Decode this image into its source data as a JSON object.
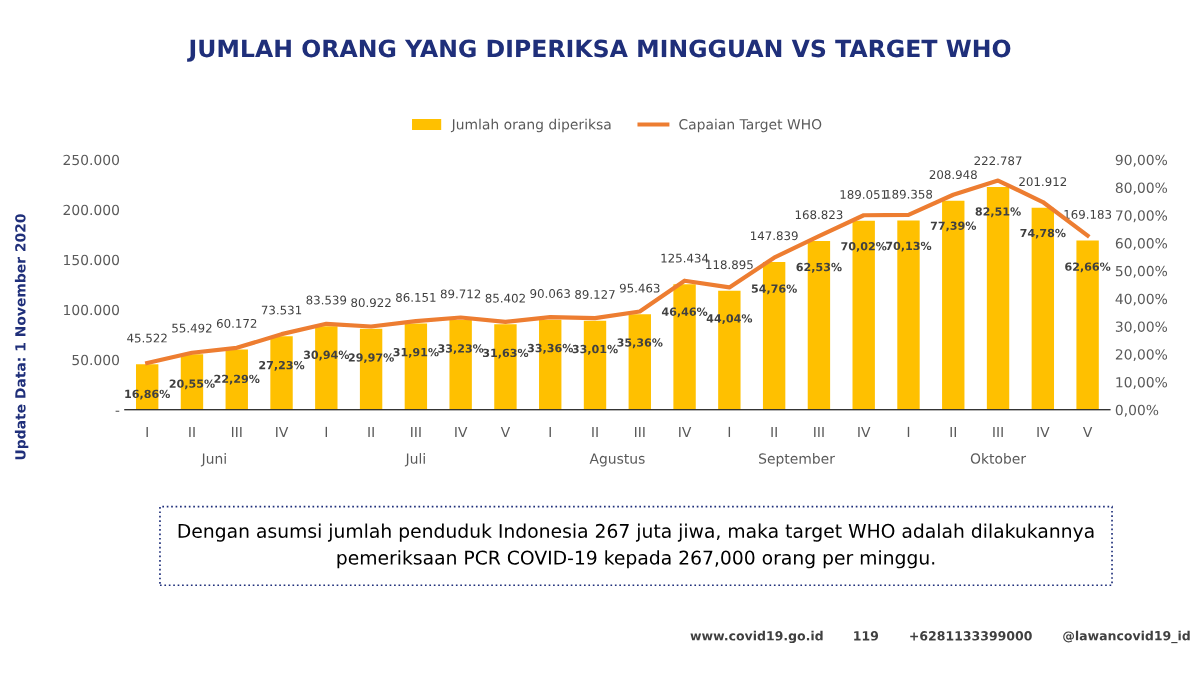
{
  "chart_data": {
    "type": "bar",
    "title": "JUMLAH ORANG YANG DIPERIKSA MINGGUAN VS TARGET WHO",
    "categories": [
      "I",
      "II",
      "III",
      "IV",
      "I",
      "II",
      "III",
      "IV",
      "V",
      "I",
      "II",
      "III",
      "IV",
      "I",
      "II",
      "III",
      "IV",
      "I",
      "II",
      "III",
      "IV",
      "V"
    ],
    "series": [
      {
        "name": "Jumlah orang diperiksa",
        "color": "#ffc000",
        "values": [
          45522,
          55492,
          60172,
          73531,
          83539,
          80922,
          86151,
          89712,
          85402,
          90063,
          89127,
          95463,
          125434,
          118895,
          147839,
          168823,
          189051,
          189358,
          208948,
          222787,
          201912,
          169183
        ],
        "value_labels": [
          "45.522",
          "55.492",
          "60.172",
          "73.531",
          "83.539",
          "80.922",
          "86.151",
          "89.712",
          "85.402",
          "90.063",
          "89.127",
          "95.463",
          "125.434",
          "118.895",
          "147.839",
          "168.823",
          "189.051",
          "189.358",
          "208.948",
          "222.787",
          "201.912",
          "169.183"
        ]
      },
      {
        "name": "Capaian Target WHO",
        "type": "line",
        "axis": "y2",
        "color": "#ed7d31",
        "values": [
          16.86,
          20.55,
          22.29,
          27.23,
          30.94,
          29.97,
          31.91,
          33.23,
          31.63,
          33.36,
          33.01,
          35.36,
          46.46,
          44.04,
          54.76,
          62.53,
          70.02,
          70.13,
          77.39,
          82.51,
          74.78,
          62.66
        ],
        "value_labels": [
          "16,86%",
          "20,55%",
          "22,29%",
          "27,23%",
          "30,94%",
          "29,97%",
          "31,91%",
          "33,23%",
          "31,63%",
          "33,36%",
          "33,01%",
          "35,36%",
          "46,46%",
          "44,04%",
          "54,76%",
          "62,53%",
          "70,02%",
          "70,13%",
          "77,39%",
          "82,51%",
          "74,78%",
          "62,66%"
        ]
      }
    ],
    "ylim": [
      0,
      250000
    ],
    "yticks": [
      {
        "value": 0,
        "label": "-"
      },
      {
        "value": 50000,
        "label": "50.000"
      },
      {
        "value": 100000,
        "label": "100.000"
      },
      {
        "value": 150000,
        "label": "150.000"
      },
      {
        "value": 200000,
        "label": "200.000"
      },
      {
        "value": 250000,
        "label": "250.000"
      }
    ],
    "y2lim": [
      0,
      90
    ],
    "y2ticks": [
      {
        "value": 0,
        "label": "0,00%"
      },
      {
        "value": 10,
        "label": "10,00%"
      },
      {
        "value": 20,
        "label": "20,00%"
      },
      {
        "value": 30,
        "label": "30,00%"
      },
      {
        "value": 40,
        "label": "40,00%"
      },
      {
        "value": 50,
        "label": "50,00%"
      },
      {
        "value": 60,
        "label": "60,00%"
      },
      {
        "value": 70,
        "label": "70,00%"
      },
      {
        "value": 80,
        "label": "80,00%"
      },
      {
        "value": 90,
        "label": "90,00%"
      }
    ],
    "grid": false,
    "legend": "top",
    "annotations": [
      "Juni",
      "Juli",
      "Agustus",
      "September",
      "Oktober",
      "Update Data: 1 November 2020",
      "Dengan asumsi jumlah penduduk Indonesia 267 juta jiwa, maka target WHO adalah dilakukannya\npemeriksaan PCR COVID-19 kepada 267,000 orang per minggu.",
      "www.covid19.go.id",
      "119",
      "+6281133399000",
      "@lawancovid19_id"
    ]
  }
}
